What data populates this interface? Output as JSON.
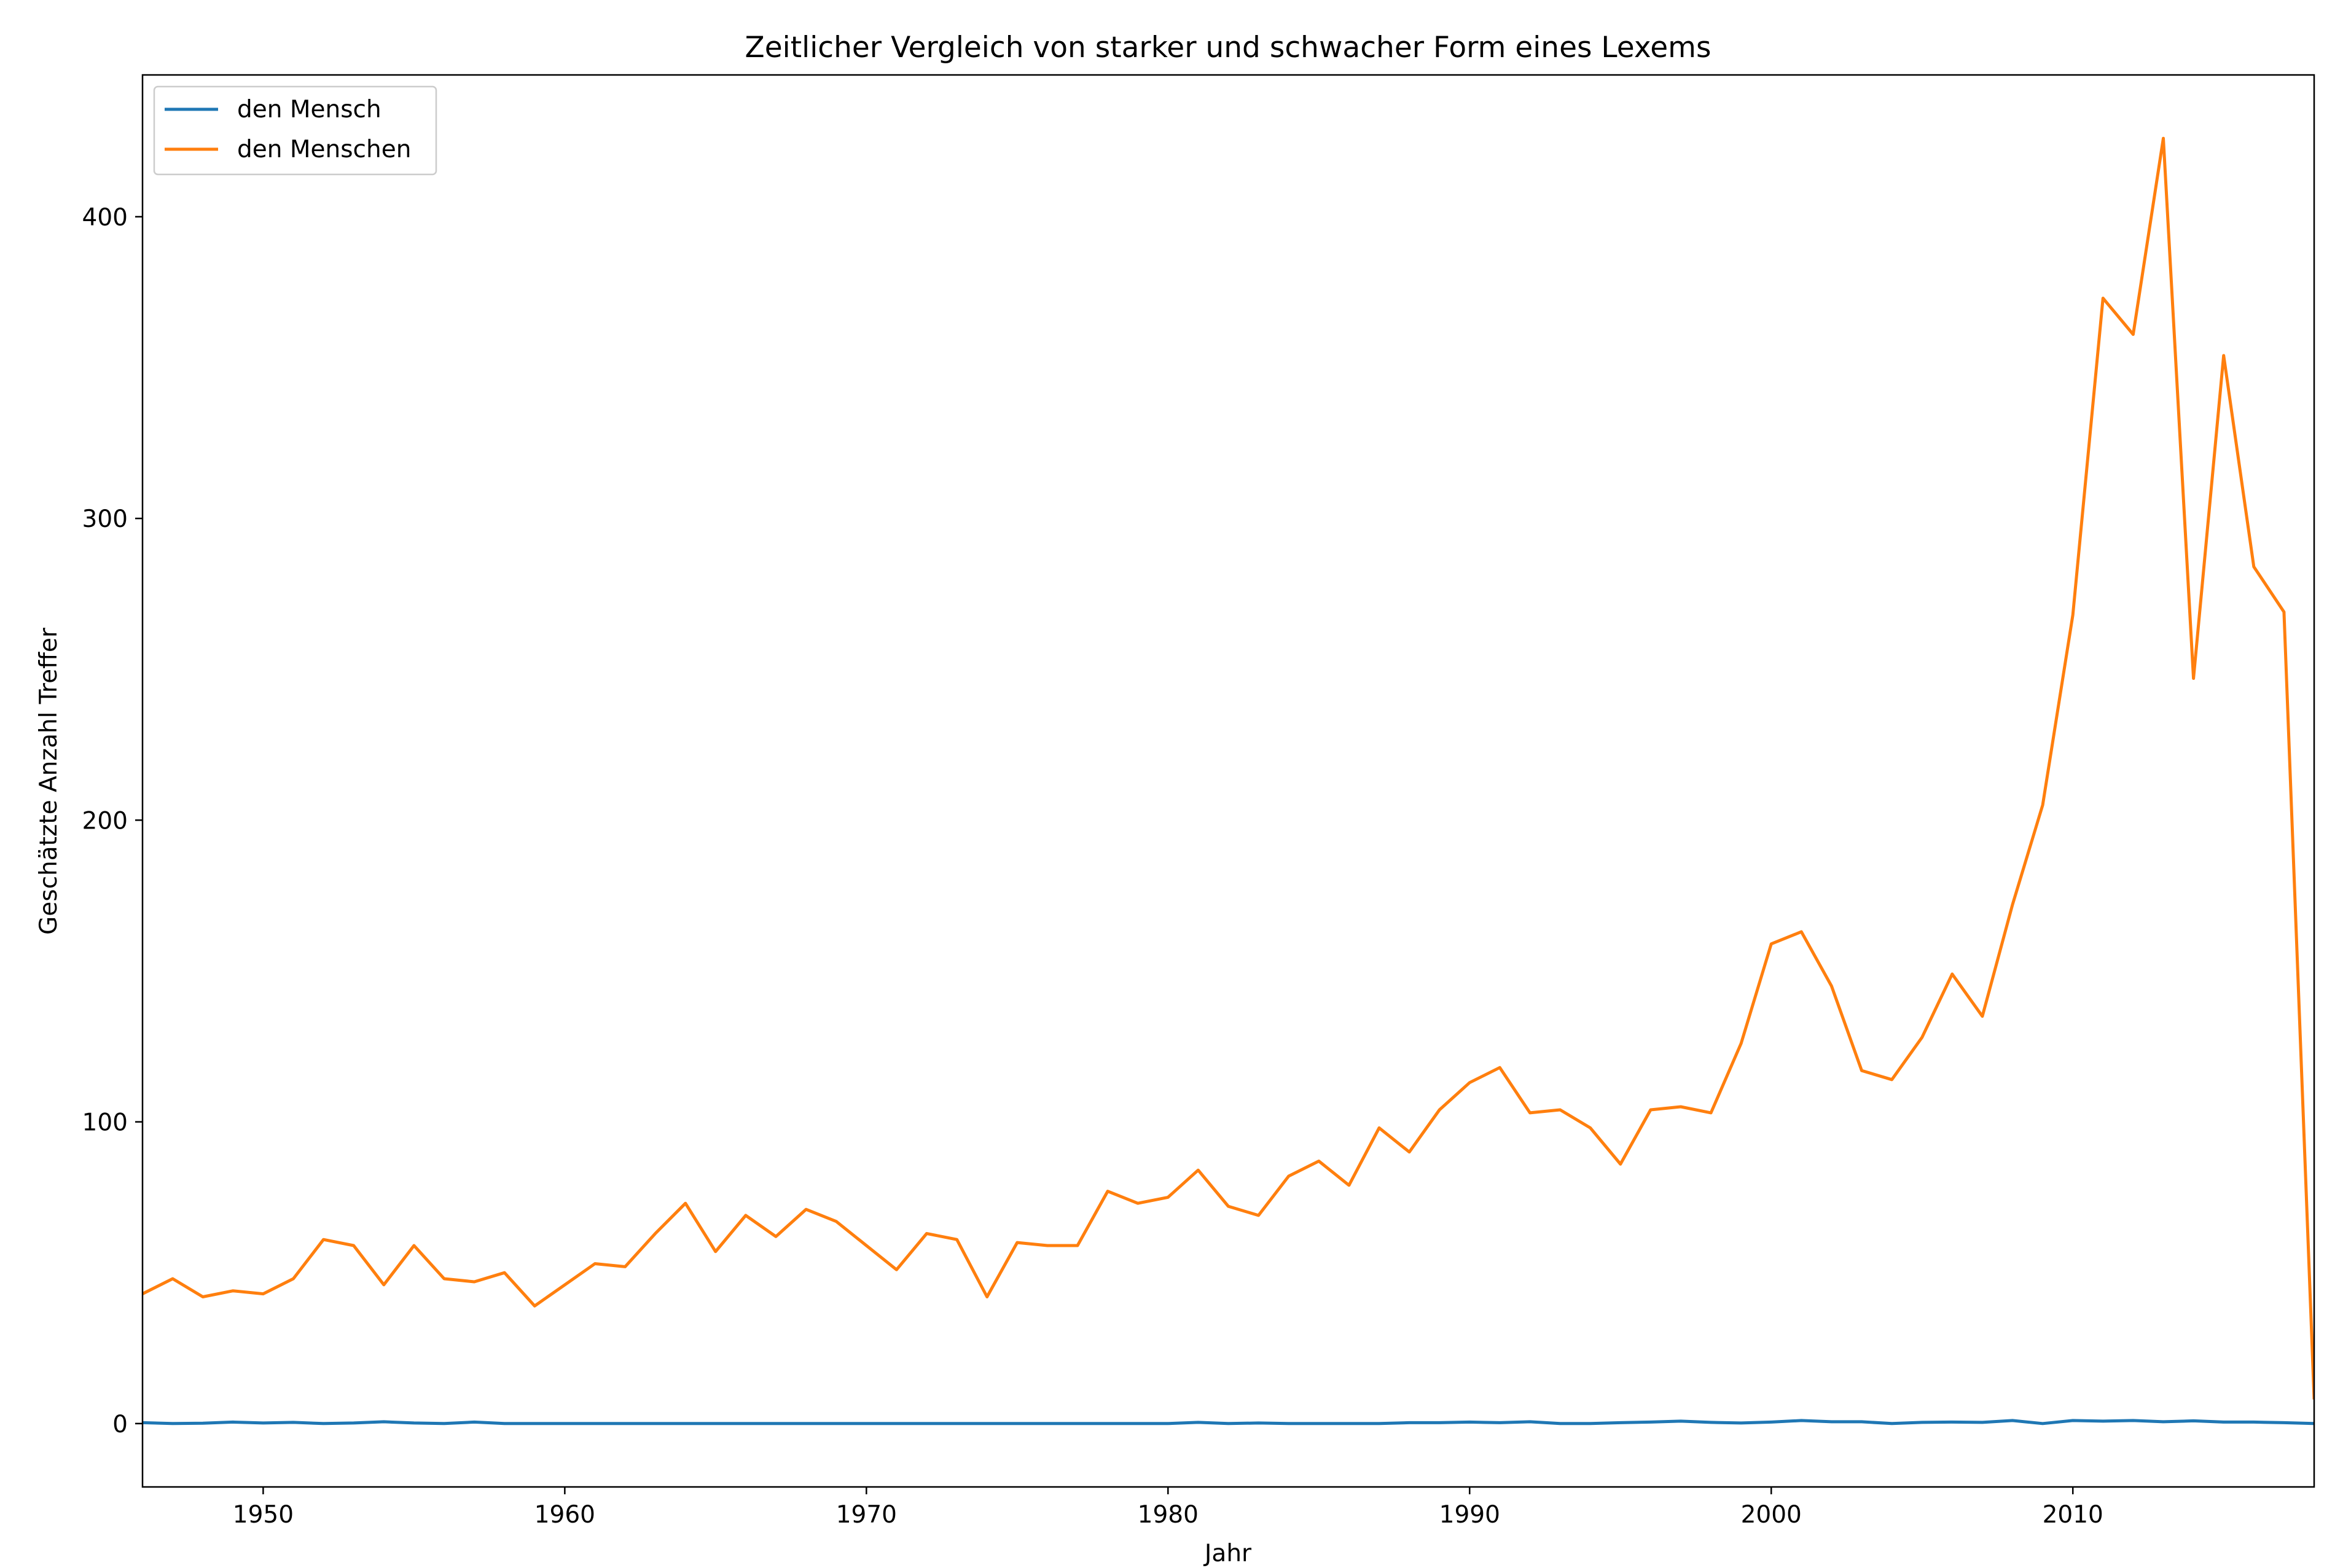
{
  "chart_data": {
    "type": "line",
    "title": "Zeitlicher Vergleich von starker und schwacher Form eines Lexems",
    "xlabel": "Jahr",
    "ylabel": "Geschätzte Anzahl Treffer",
    "xlim": [
      1946,
      2018
    ],
    "ylim": [
      -21,
      447
    ],
    "xticks": [
      1950,
      1960,
      1970,
      1980,
      1990,
      2000,
      2010
    ],
    "yticks": [
      0,
      100,
      200,
      300,
      400
    ],
    "grid": false,
    "legend_position": "top-left",
    "x": [
      1946,
      1947,
      1948,
      1949,
      1950,
      1951,
      1952,
      1953,
      1954,
      1955,
      1956,
      1957,
      1958,
      1959,
      1960,
      1961,
      1962,
      1963,
      1964,
      1965,
      1966,
      1967,
      1968,
      1969,
      1970,
      1971,
      1972,
      1973,
      1974,
      1975,
      1976,
      1977,
      1978,
      1979,
      1980,
      1981,
      1982,
      1983,
      1984,
      1985,
      1986,
      1987,
      1988,
      1989,
      1990,
      1991,
      1992,
      1993,
      1994,
      1995,
      1996,
      1997,
      1998,
      1999,
      2000,
      2001,
      2002,
      2003,
      2004,
      2005,
      2006,
      2007,
      2008,
      2009,
      2010,
      2011,
      2012,
      2013,
      2014,
      2015,
      2016,
      2017,
      2018
    ],
    "series": [
      {
        "name": "den Mensch",
        "color": "#1f77b4",
        "values": [
          0.3,
          0,
          0.1,
          0.5,
          0.2,
          0.4,
          0,
          0.2,
          0.6,
          0.2,
          0,
          0.5,
          0,
          0,
          0,
          0,
          0,
          0,
          0,
          0,
          0,
          0,
          0,
          0,
          0,
          0,
          0,
          0,
          0,
          0,
          0,
          0,
          0,
          0,
          0,
          0.4,
          0,
          0.2,
          0,
          0,
          0,
          0,
          0.3,
          0.3,
          0.5,
          0.3,
          0.6,
          0,
          0,
          0.3,
          0.5,
          0.8,
          0.4,
          0.2,
          0.5,
          1.0,
          0.6,
          0.6,
          0,
          0.4,
          0.5,
          0.4,
          1.0,
          0,
          1.0,
          0.8,
          1.0,
          0.6,
          0.9,
          0.5,
          0.5,
          0.3,
          0
        ]
      },
      {
        "name": "den Menschen",
        "color": "#ff7f0e",
        "values": [
          43,
          48,
          42,
          44,
          43,
          48,
          61,
          59,
          46,
          59,
          48,
          47,
          50,
          39,
          46,
          53,
          52,
          63,
          73,
          57,
          69,
          62,
          71,
          67,
          59,
          51,
          63,
          61,
          42,
          60,
          59,
          59,
          77,
          73,
          75,
          84,
          72,
          69,
          82,
          87,
          79,
          98,
          90,
          104,
          113,
          118,
          103,
          104,
          98,
          86,
          104,
          105,
          103,
          126,
          159,
          163,
          145,
          117,
          114,
          128,
          149,
          135,
          172,
          205,
          268,
          373,
          361,
          426,
          247,
          354,
          284,
          269,
          8
        ]
      }
    ]
  }
}
